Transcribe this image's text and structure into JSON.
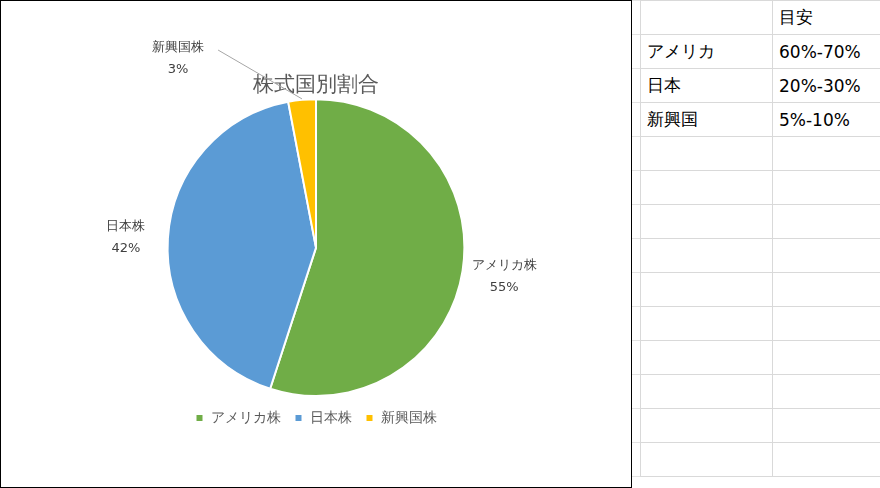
{
  "chart_data": {
    "type": "pie",
    "title": "株式国別割合",
    "categories": [
      "アメリカ株",
      "日本株",
      "新興国株"
    ],
    "values": [
      55,
      42,
      3
    ],
    "value_labels": [
      "55%",
      "42%",
      "3%"
    ],
    "colors": [
      "#70ad47",
      "#5b9bd5",
      "#ffc000"
    ],
    "data_labels": true,
    "legend": "bottom"
  },
  "table": {
    "column_header": "目安",
    "rows": [
      [
        "アメリカ",
        "60%-70%"
      ],
      [
        "日本",
        "20%-30%"
      ],
      [
        "新興国",
        "5%-10%"
      ]
    ]
  }
}
